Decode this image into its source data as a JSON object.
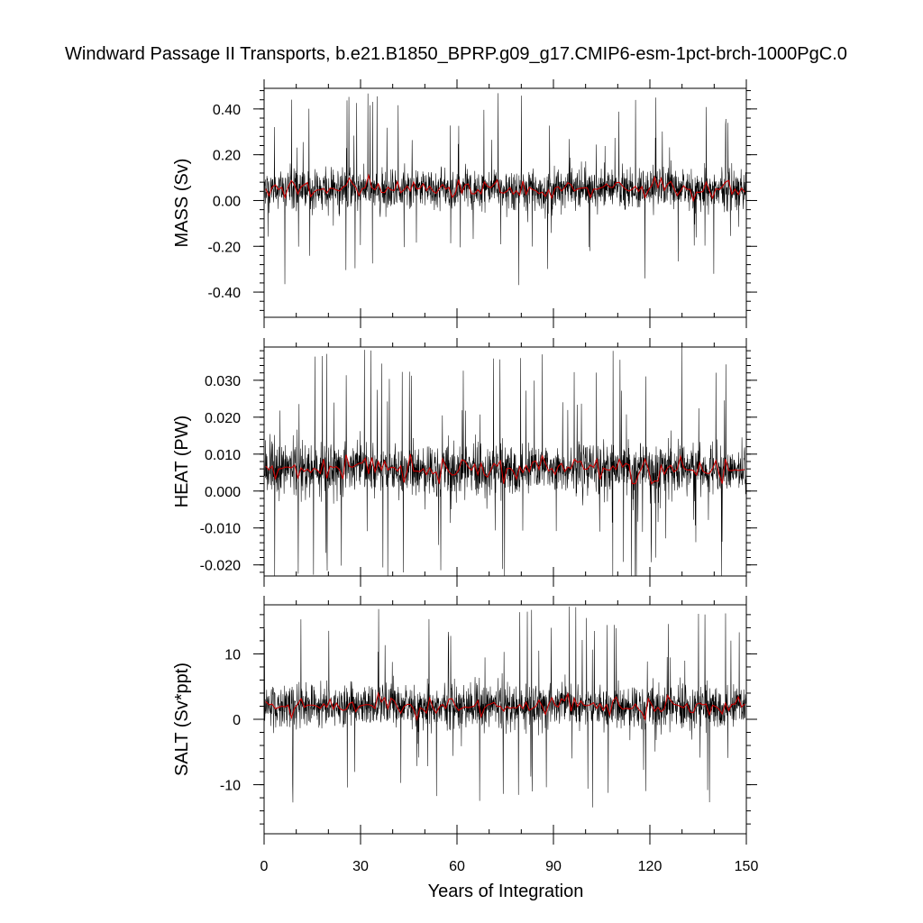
{
  "title": "Windward Passage II Transports, b.e21.B1850_BPRP.g09_g17.CMIP6-esm-1pct-brch-1000PgC.0",
  "xlabel": "Years of Integration",
  "chart_data": [
    {
      "type": "line",
      "name": "mass",
      "ylabel": "MASS (Sv)",
      "xlim": [
        0,
        150
      ],
      "ylim": [
        -0.51,
        0.49
      ],
      "x_ticks": [
        0,
        30,
        60,
        90,
        120,
        150
      ],
      "y_ticks": [
        -0.4,
        -0.2,
        0.0,
        0.2,
        0.4
      ],
      "y_tick_labels": [
        "-0.40",
        "-0.20",
        "0.00",
        "0.20",
        "0.40"
      ],
      "series": [
        {
          "role": "monthly",
          "color": "#000000",
          "mean": 0.05,
          "spread": 0.07,
          "min": -0.5,
          "max": 0.48,
          "samples_per_year": 12
        },
        {
          "role": "annual-mean",
          "color": "#cc0000",
          "mean": 0.05,
          "range": [
            0.0,
            0.11
          ]
        }
      ]
    },
    {
      "type": "line",
      "name": "heat",
      "ylabel": "HEAT (PW)",
      "xlim": [
        0,
        150
      ],
      "ylim": [
        -0.023,
        0.039
      ],
      "x_ticks": [
        0,
        30,
        60,
        90,
        120,
        150
      ],
      "y_ticks": [
        -0.02,
        -0.01,
        0.0,
        0.01,
        0.02,
        0.03
      ],
      "y_tick_labels": [
        "-0.020",
        "-0.010",
        "0.000",
        "0.010",
        "0.020",
        "0.030"
      ],
      "series": [
        {
          "role": "monthly",
          "color": "#000000",
          "mean": 0.006,
          "spread": 0.0055,
          "min": -0.023,
          "max": 0.039,
          "samples_per_year": 12
        },
        {
          "role": "annual-mean",
          "color": "#cc0000",
          "mean": 0.006,
          "range": [
            0.002,
            0.01
          ]
        }
      ]
    },
    {
      "type": "line",
      "name": "salt",
      "ylabel": "SALT (Sv*ppt)",
      "xlim": [
        0,
        150
      ],
      "ylim": [
        -17.5,
        17.5
      ],
      "x_ticks": [
        0,
        30,
        60,
        90,
        120,
        150
      ],
      "y_ticks": [
        -10,
        0,
        10
      ],
      "y_tick_labels": [
        "-10",
        "0",
        "10"
      ],
      "series": [
        {
          "role": "monthly",
          "color": "#000000",
          "mean": 2.0,
          "spread": 2.6,
          "min": -17,
          "max": 17.5,
          "samples_per_year": 12
        },
        {
          "role": "annual-mean",
          "color": "#cc0000",
          "mean": 2.0,
          "range": [
            0.0,
            4.0
          ]
        }
      ]
    }
  ],
  "x_tick_labels": [
    "0",
    "30",
    "60",
    "90",
    "120",
    "150"
  ]
}
